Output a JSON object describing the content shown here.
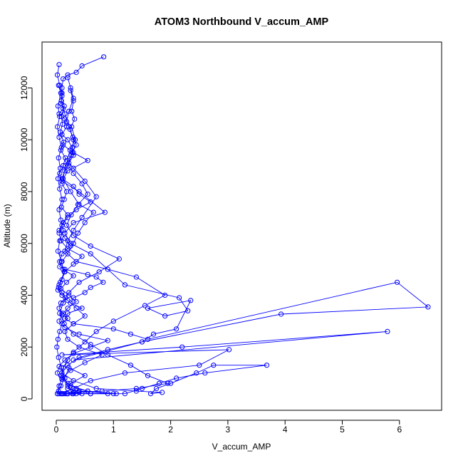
{
  "chart_data": {
    "type": "line",
    "title": "ATOM3 Northbound V_accum_AMP",
    "xlabel": "V_accum_AMP",
    "ylabel": "Altitude (m)",
    "xlim": [
      0,
      6.5
    ],
    "ylim": [
      0,
      13200
    ],
    "x_ticks": [
      0,
      1,
      2,
      3,
      4,
      5,
      6
    ],
    "y_ticks": [
      0,
      2000,
      4000,
      6000,
      8000,
      10000,
      12000
    ],
    "x_tick_labels": [
      "0",
      "1",
      "2",
      "3",
      "4",
      "5",
      "6"
    ],
    "y_tick_labels": [
      "0",
      "2000",
      "4000",
      "6000",
      "8000",
      "10000",
      "12000"
    ],
    "grid": false,
    "series_color": "#0000FF",
    "marker": "open-circle",
    "series": [
      {
        "name": "",
        "x": [
          0.83,
          0.45,
          0.35,
          0.2,
          0.12,
          0.1,
          0.09,
          0.15,
          0.22,
          0.3,
          0.28,
          0.16,
          0.12,
          0.25,
          0.4,
          0.65,
          0.5,
          0.38,
          0.3,
          0.2,
          0.1,
          0.06,
          0.15,
          0.55,
          0.7,
          0.82,
          0.6,
          0.5,
          0.3,
          0.25,
          0.45,
          0.2,
          0.15,
          0.3,
          1.0,
          1.3,
          1.6,
          5.96,
          6.5,
          3.93,
          1.5,
          0.3,
          5.79,
          2.2,
          0.1,
          3.02,
          2.5,
          1.2,
          0.6,
          0.3,
          0.05,
          0.12,
          0.3,
          0.6,
          1.0,
          0.4,
          0.2,
          0.25,
          0.5,
          0.22,
          0.15,
          0.2,
          0.28
        ],
        "y": [
          13200,
          12850,
          12600,
          12500,
          12350,
          12000,
          11500,
          11000,
          10500,
          10000,
          9500,
          9000,
          8500,
          8000,
          7500,
          7200,
          6800,
          6400,
          6000,
          5600,
          5300,
          5100,
          5000,
          4800,
          4700,
          4500,
          4300,
          4100,
          3900,
          3700,
          3500,
          3300,
          3100,
          2900,
          2700,
          2500,
          2300,
          4500,
          3550,
          3270,
          2200,
          1500,
          2600,
          2000,
          1700,
          1900,
          1300,
          1000,
          700,
          400,
          200,
          200,
          200,
          200,
          200,
          300,
          400,
          600,
          900,
          1200,
          800,
          500,
          200
        ]
      },
      {
        "name": "",
        "x": [
          0.05,
          0.02,
          0.06,
          0.1,
          0.08,
          0.12,
          0.05,
          0.15,
          0.18,
          0.1,
          0.2,
          0.28,
          0.3,
          0.22,
          0.15,
          0.1,
          0.3,
          0.4,
          0.6,
          0.35,
          0.2,
          0.1,
          0.05,
          0.08,
          0.2,
          0.45,
          0.3,
          0.15,
          0.1,
          0.05,
          0.03,
          0.1,
          0.2,
          0.35,
          0.5,
          0.3,
          0.15,
          0.2,
          0.4,
          0.8,
          0.5,
          0.25,
          0.1,
          0.05,
          0.02,
          0.08
        ],
        "y": [
          12900,
          12500,
          12100,
          11800,
          11400,
          11200,
          11000,
          10800,
          10500,
          10200,
          10000,
          9700,
          9400,
          9100,
          8800,
          8500,
          8200,
          7900,
          7600,
          7300,
          7000,
          6700,
          6400,
          6100,
          5800,
          5500,
          5200,
          4900,
          4600,
          4400,
          4200,
          4000,
          3800,
          3500,
          3200,
          2900,
          2600,
          2300,
          2000,
          1700,
          1400,
          1100,
          800,
          500,
          200,
          200
        ]
      },
      {
        "name": "",
        "x": [
          0.12,
          0.3,
          0.55,
          0.2,
          0.1,
          0.4,
          0.85,
          0.3,
          0.15,
          0.25,
          0.6,
          1.2,
          2.15,
          2.3,
          1.9,
          1.6,
          2.35,
          2.1,
          1.7,
          1.5,
          0.9,
          0.4,
          0.2,
          0.1,
          0.3,
          0.7,
          1.4,
          1.85,
          1.65,
          1.75,
          2.0,
          2.45,
          2.75,
          3.68,
          2.6,
          2.1,
          1.8,
          1.5,
          1.2,
          0.9,
          0.6,
          0.35,
          0.18,
          0.1
        ],
        "y": [
          9800,
          9500,
          9200,
          8800,
          8400,
          8000,
          7200,
          6800,
          6400,
          6000,
          5600,
          4400,
          3900,
          3400,
          3200,
          3500,
          3800,
          2700,
          2500,
          2200,
          1900,
          1600,
          1300,
          1000,
          700,
          400,
          300,
          250,
          200,
          400,
          600,
          1000,
          1300,
          1300,
          1000,
          800,
          600,
          400,
          200,
          200,
          200,
          200,
          200,
          200
        ]
      },
      {
        "name": "",
        "x": [
          0.2,
          0.25,
          0.3,
          0.22,
          0.18,
          0.27,
          0.33,
          0.24,
          0.19,
          0.3,
          0.5,
          0.7,
          0.45,
          0.3,
          0.2,
          0.15,
          0.35,
          0.9,
          1.4,
          1.9,
          1.55,
          1.0,
          0.7,
          0.5,
          0.3,
          0.2,
          0.12,
          0.08,
          0.2,
          0.35,
          0.55,
          0.3,
          0.15
        ],
        "y": [
          12400,
          12000,
          11600,
          11100,
          10700,
          10500,
          10000,
          9600,
          9200,
          8900,
          8400,
          7800,
          7000,
          6500,
          6100,
          5700,
          5300,
          5000,
          4700,
          4000,
          3600,
          3000,
          2600,
          2200,
          1800,
          1500,
          1200,
          900,
          600,
          400,
          300,
          250,
          200
        ]
      },
      {
        "name": "",
        "x": [
          0.1,
          0.14,
          0.09,
          0.11,
          0.07,
          0.13,
          0.08,
          0.16,
          0.12,
          0.06,
          0.1,
          0.18,
          0.14,
          0.09,
          0.2,
          0.12,
          0.05,
          0.15,
          0.25,
          0.1,
          0.06,
          0.12,
          0.3,
          0.18,
          0.08,
          0.22,
          0.35,
          0.2,
          0.1,
          0.05,
          0.15,
          0.4,
          0.9,
          0.6,
          0.3,
          0.15,
          0.05,
          0.02,
          0.1,
          0.25,
          0.55,
          1.05,
          0.45,
          0.2
        ],
        "y": [
          11700,
          11300,
          10900,
          10600,
          10300,
          9900,
          9600,
          9300,
          9000,
          8700,
          8300,
          8000,
          7700,
          7400,
          7100,
          6800,
          6500,
          6200,
          5900,
          5600,
          5300,
          5000,
          4750,
          4500,
          4250,
          4000,
          3750,
          3500,
          3250,
          3000,
          2750,
          2500,
          2250,
          2000,
          1750,
          1500,
          1250,
          1000,
          750,
          500,
          300,
          200,
          200,
          200
        ]
      },
      {
        "name": "",
        "x": [
          0.25,
          0.3,
          0.27,
          0.32,
          0.24,
          0.29,
          0.35,
          0.26,
          0.21,
          0.3,
          0.45,
          0.55,
          0.38,
          0.26,
          0.18,
          0.3,
          0.6,
          1.1,
          0.75,
          0.4,
          0.22,
          0.12,
          0.06,
          0.14,
          0.3,
          0.6,
          0.9,
          1.3,
          1.6,
          1.95,
          1.4,
          0.8,
          0.4,
          0.2,
          0.1
        ],
        "y": [
          11900,
          11500,
          11100,
          10800,
          10400,
          10100,
          9800,
          9400,
          9000,
          8700,
          8300,
          7900,
          7500,
          7100,
          6700,
          6300,
          5900,
          5400,
          4900,
          4500,
          4100,
          3700,
          3300,
          2900,
          2500,
          2100,
          1700,
          1300,
          900,
          600,
          400,
          300,
          250,
          200,
          200
        ]
      },
      {
        "name": "",
        "x": [
          0.04,
          0.08,
          0.03,
          0.06,
          0.02,
          0.05,
          0.09,
          0.04,
          0.07,
          0.03,
          0.06,
          0.1,
          0.05,
          0.08,
          0.12,
          0.06,
          0.03,
          0.09,
          0.14,
          0.07,
          0.04,
          0.1,
          0.16,
          0.08,
          0.05,
          0.12,
          0.2,
          0.1,
          0.06,
          0.03,
          0.01,
          0.04,
          0.09,
          0.15,
          0.08,
          0.04,
          0.02
        ],
        "y": [
          12100,
          11800,
          11300,
          10900,
          10500,
          10100,
          9700,
          9300,
          8900,
          8500,
          8100,
          7700,
          7300,
          6900,
          6500,
          6100,
          5700,
          5300,
          4900,
          4500,
          4300,
          4100,
          3900,
          3700,
          3500,
          3300,
          3100,
          2900,
          2600,
          2300,
          2000,
          1600,
          1200,
          800,
          500,
          300,
          200
        ]
      }
    ]
  }
}
